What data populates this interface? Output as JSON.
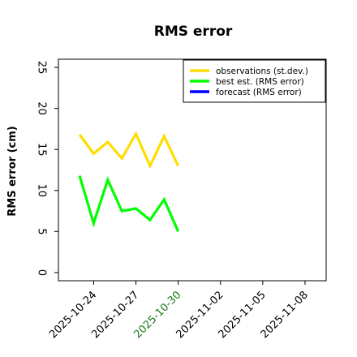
{
  "chart_data": {
    "type": "line",
    "title": "RMS error",
    "ylabel": "RMS error (cm)",
    "xlabel": "",
    "ylim": [
      -1,
      26
    ],
    "xlim": [
      "2025-10-21T12:00",
      "2025-11-09T12:00"
    ],
    "y_ticks": [
      0,
      5,
      10,
      15,
      20,
      25
    ],
    "x_ticks": [
      {
        "date": "2025-10-24",
        "label": "2025-10-24",
        "color": "#000000"
      },
      {
        "date": "2025-10-27",
        "label": "2025-10-27",
        "color": "#000000"
      },
      {
        "date": "2025-10-30",
        "label": "2025-10-30",
        "color": "#1a7a1a"
      },
      {
        "date": "2025-11-02",
        "label": "2025-11-02",
        "color": "#000000"
      },
      {
        "date": "2025-11-05",
        "label": "2025-11-05",
        "color": "#000000"
      },
      {
        "date": "2025-11-08",
        "label": "2025-11-08",
        "color": "#000000"
      }
    ],
    "grid": false,
    "legend_position": "top-right",
    "series": [
      {
        "name": "observations (st.dev.)",
        "color": "#ffdd00",
        "points": [
          [
            "2025-10-23",
            16.8
          ],
          [
            "2025-10-24",
            14.5
          ],
          [
            "2025-10-25",
            15.9
          ],
          [
            "2025-10-26",
            13.9
          ],
          [
            "2025-10-27",
            16.9
          ],
          [
            "2025-10-28",
            13.0
          ],
          [
            "2025-10-29",
            16.6
          ],
          [
            "2025-10-30",
            13.0
          ]
        ]
      },
      {
        "name": "best est. (RMS error)",
        "color": "#00ff00",
        "points": [
          [
            "2025-10-23",
            11.8
          ],
          [
            "2025-10-24",
            6.0
          ],
          [
            "2025-10-25",
            11.3
          ],
          [
            "2025-10-26",
            7.5
          ],
          [
            "2025-10-27",
            7.8
          ],
          [
            "2025-10-28",
            6.4
          ],
          [
            "2025-10-29",
            8.9
          ],
          [
            "2025-10-30",
            5.0
          ]
        ]
      },
      {
        "name": "forecast (RMS error)",
        "color": "#0000ff",
        "points": []
      }
    ]
  }
}
